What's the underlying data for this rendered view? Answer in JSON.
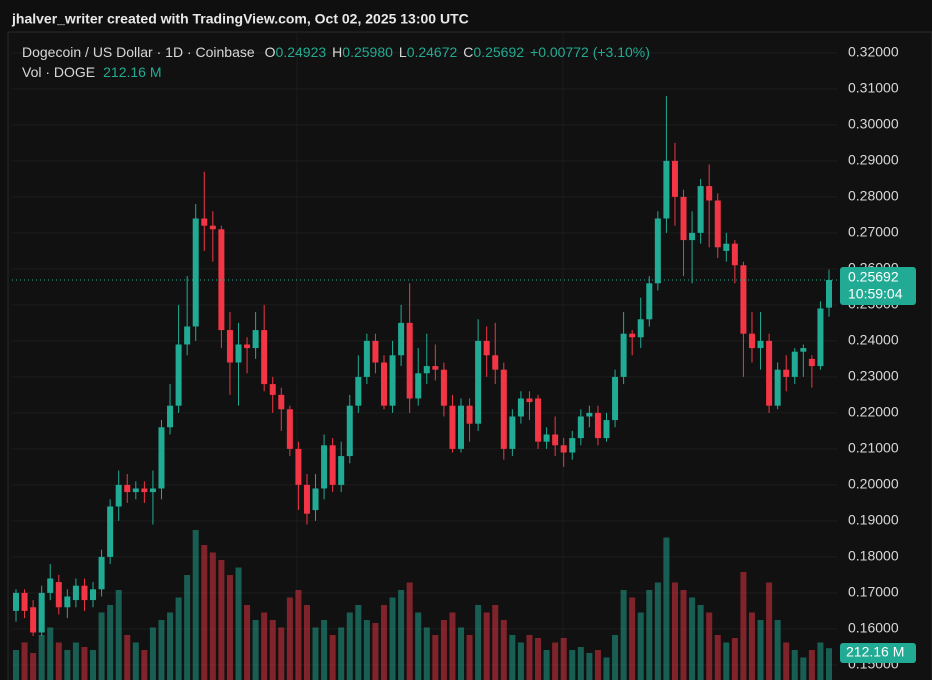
{
  "header": {
    "credit": "jhalver_writer created with TradingView.com, Oct 02, 2025 13:00 UTC"
  },
  "chart_data": {
    "type": "candlestick",
    "title": "Dogecoin / US Dollar · 1D · Coinbase",
    "ohlc_legend": [
      {
        "key": "O",
        "text": "0.24923"
      },
      {
        "key": "H",
        "text": "0.25980"
      },
      {
        "key": "L",
        "text": "0.24672"
      },
      {
        "key": "C",
        "text": "0.25692"
      }
    ],
    "change": "+0.00772 (+3.10%)",
    "volume_name": "Vol · DOGE",
    "volume_legend": "212.16 M",
    "up_color": "#22ab94",
    "down_color": "#f23645",
    "grid": true,
    "ylim": [
      0.1458,
      0.3258
    ],
    "yticks": [
      {
        "value": 0.32,
        "label": "0.32000"
      },
      {
        "value": 0.31,
        "label": "0.31000"
      },
      {
        "value": 0.3,
        "label": "0.30000"
      },
      {
        "value": 0.29,
        "label": "0.29000"
      },
      {
        "value": 0.28,
        "label": "0.28000"
      },
      {
        "value": 0.27,
        "label": "0.27000"
      },
      {
        "value": 0.26,
        "label": "0.26000"
      },
      {
        "value": 0.25,
        "label": "0.25000"
      },
      {
        "value": 0.24,
        "label": "0.24000"
      },
      {
        "value": 0.23,
        "label": "0.23000"
      },
      {
        "value": 0.22,
        "label": "0.22000"
      },
      {
        "value": 0.21,
        "label": "0.21000"
      },
      {
        "value": 0.2,
        "label": "0.20000"
      },
      {
        "value": 0.19,
        "label": "0.19000"
      },
      {
        "value": 0.18,
        "label": "0.18000"
      },
      {
        "value": 0.17,
        "label": "0.17000"
      },
      {
        "value": 0.16,
        "label": "0.16000"
      },
      {
        "value": 0.15,
        "label": "0.15000"
      }
    ],
    "last_price": {
      "value": 0.25692,
      "label": "0.25692"
    },
    "countdown": "10:59:04",
    "open": [
      0.165,
      0.17,
      0.166,
      0.159,
      0.17,
      0.173,
      0.166,
      0.168,
      0.172,
      0.168,
      0.171,
      0.18,
      0.194,
      0.2,
      0.198,
      0.199,
      0.198,
      0.199,
      0.216,
      0.222,
      0.239,
      0.244,
      0.274,
      0.272,
      0.271,
      0.243,
      0.234,
      0.239,
      0.238,
      0.243,
      0.228,
      0.225,
      0.221,
      0.21,
      0.2,
      0.193,
      0.199,
      0.211,
      0.2,
      0.208,
      0.222,
      0.23,
      0.24,
      0.234,
      0.222,
      0.236,
      0.245,
      0.224,
      0.231,
      0.233,
      0.232,
      0.222,
      0.21,
      0.222,
      0.217,
      0.24,
      0.236,
      0.232,
      0.21,
      0.219,
      0.224,
      0.224,
      0.212,
      0.214,
      0.211,
      0.209,
      0.213,
      0.219,
      0.22,
      0.213,
      0.218,
      0.23,
      0.242,
      0.241,
      0.246,
      0.256,
      0.274,
      0.29,
      0.28,
      0.268,
      0.27,
      0.283,
      0.279,
      0.265,
      0.267,
      0.261,
      0.242,
      0.238,
      0.24,
      0.222,
      0.232,
      0.23,
      0.237,
      0.235,
      0.233,
      0.24923
    ],
    "high": [
      0.171,
      0.171,
      0.168,
      0.172,
      0.178,
      0.175,
      0.171,
      0.174,
      0.174,
      0.173,
      0.182,
      0.196,
      0.204,
      0.203,
      0.201,
      0.201,
      0.204,
      0.218,
      0.228,
      0.25,
      0.258,
      0.278,
      0.287,
      0.276,
      0.272,
      0.248,
      0.245,
      0.241,
      0.248,
      0.25,
      0.23,
      0.227,
      0.222,
      0.212,
      0.203,
      0.203,
      0.214,
      0.213,
      0.212,
      0.225,
      0.236,
      0.242,
      0.242,
      0.236,
      0.24,
      0.25,
      0.256,
      0.238,
      0.242,
      0.239,
      0.234,
      0.225,
      0.224,
      0.224,
      0.246,
      0.244,
      0.245,
      0.234,
      0.221,
      0.226,
      0.226,
      0.225,
      0.216,
      0.219,
      0.213,
      0.215,
      0.221,
      0.222,
      0.222,
      0.22,
      0.232,
      0.248,
      0.243,
      0.252,
      0.258,
      0.276,
      0.308,
      0.295,
      0.282,
      0.276,
      0.285,
      0.289,
      0.281,
      0.27,
      0.268,
      0.262,
      0.248,
      0.248,
      0.242,
      0.234,
      0.236,
      0.238,
      0.239,
      0.236,
      0.251,
      0.2598
    ],
    "low": [
      0.162,
      0.163,
      0.158,
      0.158,
      0.168,
      0.164,
      0.163,
      0.166,
      0.165,
      0.166,
      0.169,
      0.178,
      0.19,
      0.195,
      0.196,
      0.195,
      0.189,
      0.196,
      0.214,
      0.22,
      0.236,
      0.24,
      0.265,
      0.262,
      0.238,
      0.225,
      0.222,
      0.231,
      0.235,
      0.226,
      0.22,
      0.215,
      0.208,
      0.193,
      0.189,
      0.19,
      0.196,
      0.198,
      0.198,
      0.206,
      0.22,
      0.228,
      0.231,
      0.221,
      0.22,
      0.233,
      0.22,
      0.222,
      0.228,
      0.229,
      0.219,
      0.209,
      0.209,
      0.212,
      0.215,
      0.23,
      0.228,
      0.207,
      0.208,
      0.217,
      0.218,
      0.21,
      0.21,
      0.208,
      0.205,
      0.207,
      0.211,
      0.216,
      0.211,
      0.212,
      0.216,
      0.228,
      0.236,
      0.238,
      0.244,
      0.254,
      0.27,
      0.272,
      0.258,
      0.256,
      0.267,
      0.266,
      0.263,
      0.262,
      0.256,
      0.23,
      0.234,
      0.232,
      0.22,
      0.221,
      0.226,
      0.228,
      0.23,
      0.227,
      0.232,
      0.24672
    ],
    "close": [
      0.17,
      0.165,
      0.159,
      0.17,
      0.174,
      0.166,
      0.169,
      0.172,
      0.168,
      0.171,
      0.18,
      0.194,
      0.2,
      0.198,
      0.199,
      0.198,
      0.199,
      0.216,
      0.222,
      0.239,
      0.244,
      0.274,
      0.272,
      0.271,
      0.243,
      0.234,
      0.239,
      0.238,
      0.243,
      0.228,
      0.225,
      0.221,
      0.21,
      0.2,
      0.192,
      0.199,
      0.211,
      0.2,
      0.208,
      0.222,
      0.23,
      0.24,
      0.234,
      0.222,
      0.236,
      0.245,
      0.224,
      0.231,
      0.233,
      0.232,
      0.222,
      0.21,
      0.222,
      0.217,
      0.24,
      0.236,
      0.232,
      0.21,
      0.219,
      0.224,
      0.223,
      0.212,
      0.214,
      0.211,
      0.209,
      0.213,
      0.219,
      0.22,
      0.213,
      0.218,
      0.23,
      0.242,
      0.241,
      0.246,
      0.256,
      0.274,
      0.29,
      0.28,
      0.268,
      0.27,
      0.283,
      0.279,
      0.266,
      0.267,
      0.261,
      0.242,
      0.238,
      0.24,
      0.222,
      0.232,
      0.23,
      0.237,
      0.238,
      0.233,
      0.249,
      0.25692
    ],
    "volume_ylim": [
      0,
      1000
    ],
    "volume": [
      200,
      250,
      180,
      300,
      350,
      250,
      200,
      250,
      220,
      200,
      450,
      500,
      600,
      300,
      250,
      200,
      350,
      400,
      450,
      550,
      700,
      1000,
      900,
      850,
      800,
      700,
      750,
      500,
      400,
      450,
      400,
      350,
      550,
      600,
      500,
      350,
      400,
      300,
      350,
      450,
      500,
      400,
      380,
      500,
      550,
      600,
      650,
      450,
      350,
      300,
      400,
      450,
      350,
      300,
      500,
      450,
      500,
      400,
      300,
      250,
      300,
      280,
      200,
      250,
      280,
      200,
      220,
      180,
      200,
      150,
      300,
      600,
      550,
      450,
      600,
      650,
      950,
      650,
      600,
      550,
      500,
      450,
      300,
      250,
      280,
      720,
      450,
      400,
      650,
      400,
      250,
      200,
      150,
      200,
      250,
      212.16
    ]
  }
}
